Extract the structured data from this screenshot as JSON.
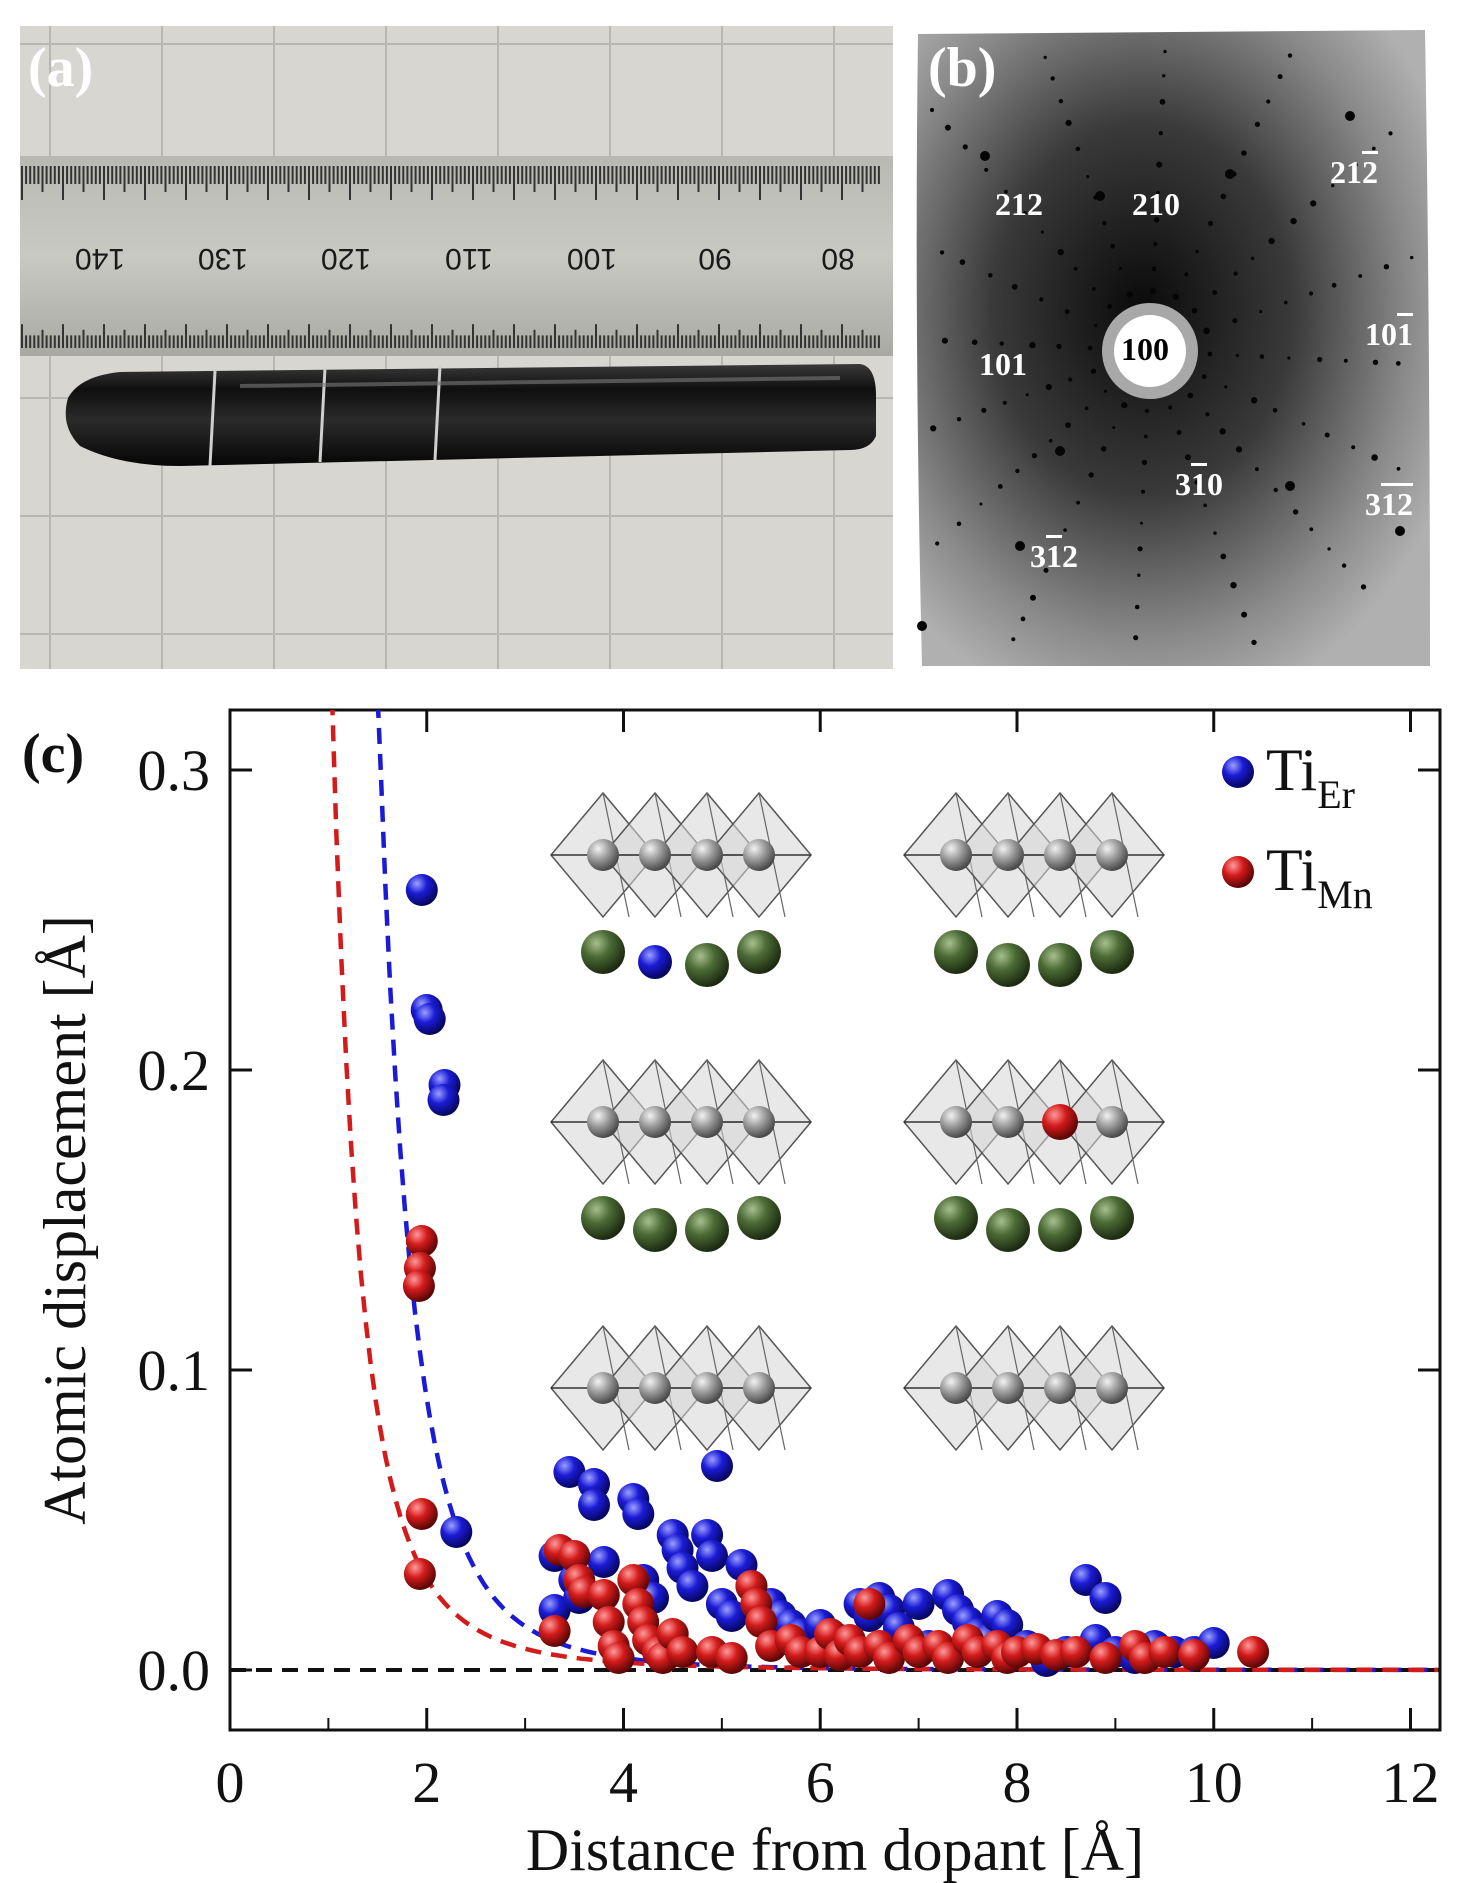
{
  "panels": {
    "a_label": "(a)",
    "b_label": "(b)",
    "c_label": "(c)"
  },
  "ruler": {
    "numbers": [
      "140",
      "130",
      "120",
      "110",
      "100",
      "90",
      "80"
    ]
  },
  "laue": {
    "spots": [
      {
        "main": "212",
        "bar": ""
      },
      {
        "main": "210",
        "bar": ""
      },
      {
        "main": "21",
        "bar": "2"
      },
      {
        "main": "100",
        "bar": ""
      },
      {
        "main": "101",
        "bar": ""
      },
      {
        "main": "10",
        "bar": "1"
      },
      {
        "main": "3",
        "bar": "1",
        "tail": "0"
      },
      {
        "main": "3",
        "bar": "12"
      },
      {
        "main": "3",
        "bar": "1",
        "tail": "2"
      }
    ]
  },
  "colors": {
    "ti_er": "#1b1bd6",
    "ti_mn": "#d41b1b",
    "er_atom": "#4b6b35",
    "mn_atom": "#8a8a8a"
  },
  "chart_data": {
    "type": "scatter",
    "title": "",
    "xlabel": "Distance from dopant [Å]",
    "ylabel": "Atomic displacement [Å]",
    "xlim": [
      0,
      12.3
    ],
    "ylim": [
      -0.02,
      0.32
    ],
    "xticks": [
      "0",
      "2",
      "4",
      "6",
      "8",
      "10",
      "12"
    ],
    "yticks": [
      "0.0",
      "0.1",
      "0.2",
      "0.3"
    ],
    "legend": [
      {
        "name": "Ti",
        "sub": "Er"
      },
      {
        "name": "Ti",
        "sub": "Mn"
      }
    ],
    "series": [
      {
        "name": "Ti_Er",
        "points": [
          [
            1.95,
            0.26
          ],
          [
            2.0,
            0.22
          ],
          [
            2.03,
            0.217
          ],
          [
            2.18,
            0.195
          ],
          [
            2.17,
            0.19
          ],
          [
            2.3,
            0.046
          ],
          [
            3.3,
            0.038
          ],
          [
            3.3,
            0.02
          ],
          [
            3.45,
            0.066
          ],
          [
            3.5,
            0.03
          ],
          [
            3.55,
            0.024
          ],
          [
            3.7,
            0.062
          ],
          [
            3.7,
            0.055
          ],
          [
            3.8,
            0.036
          ],
          [
            4.1,
            0.057
          ],
          [
            4.15,
            0.052
          ],
          [
            4.2,
            0.03
          ],
          [
            4.3,
            0.024
          ],
          [
            4.5,
            0.045
          ],
          [
            4.55,
            0.04
          ],
          [
            4.6,
            0.034
          ],
          [
            4.7,
            0.028
          ],
          [
            4.85,
            0.045
          ],
          [
            4.9,
            0.038
          ],
          [
            4.95,
            0.068
          ],
          [
            5.0,
            0.022
          ],
          [
            5.1,
            0.018
          ],
          [
            5.2,
            0.035
          ],
          [
            5.3,
            0.028
          ],
          [
            5.5,
            0.022
          ],
          [
            5.6,
            0.018
          ],
          [
            5.7,
            0.015
          ],
          [
            5.8,
            0.012
          ],
          [
            6.0,
            0.015
          ],
          [
            6.1,
            0.012
          ],
          [
            6.2,
            0.01
          ],
          [
            6.4,
            0.022
          ],
          [
            6.5,
            0.018
          ],
          [
            6.6,
            0.024
          ],
          [
            6.7,
            0.02
          ],
          [
            6.8,
            0.014
          ],
          [
            7.0,
            0.022
          ],
          [
            7.1,
            0.008
          ],
          [
            7.3,
            0.025
          ],
          [
            7.4,
            0.02
          ],
          [
            7.5,
            0.016
          ],
          [
            7.6,
            0.012
          ],
          [
            7.7,
            0.01
          ],
          [
            7.8,
            0.018
          ],
          [
            7.9,
            0.015
          ],
          [
            8.1,
            0.008
          ],
          [
            8.3,
            0.003
          ],
          [
            8.5,
            0.006
          ],
          [
            8.7,
            0.03
          ],
          [
            8.8,
            0.01
          ],
          [
            8.9,
            0.024
          ],
          [
            9.0,
            0.006
          ],
          [
            9.2,
            0.004
          ],
          [
            9.4,
            0.008
          ],
          [
            9.6,
            0.006
          ],
          [
            9.8,
            0.006
          ],
          [
            10.0,
            0.009
          ]
        ]
      },
      {
        "name": "Ti_Mn",
        "points": [
          [
            1.95,
            0.143
          ],
          [
            1.93,
            0.134
          ],
          [
            1.92,
            0.128
          ],
          [
            1.95,
            0.052
          ],
          [
            1.93,
            0.032
          ],
          [
            3.3,
            0.013
          ],
          [
            3.35,
            0.04
          ],
          [
            3.5,
            0.038
          ],
          [
            3.55,
            0.03
          ],
          [
            3.6,
            0.026
          ],
          [
            3.8,
            0.025
          ],
          [
            3.85,
            0.016
          ],
          [
            3.9,
            0.008
          ],
          [
            3.95,
            0.004
          ],
          [
            4.1,
            0.03
          ],
          [
            4.15,
            0.022
          ],
          [
            4.2,
            0.016
          ],
          [
            4.25,
            0.01
          ],
          [
            4.35,
            0.006
          ],
          [
            4.4,
            0.004
          ],
          [
            4.5,
            0.012
          ],
          [
            4.6,
            0.006
          ],
          [
            4.9,
            0.006
          ],
          [
            5.1,
            0.004
          ],
          [
            5.3,
            0.028
          ],
          [
            5.35,
            0.022
          ],
          [
            5.4,
            0.016
          ],
          [
            5.5,
            0.008
          ],
          [
            5.7,
            0.01
          ],
          [
            5.8,
            0.006
          ],
          [
            6.0,
            0.006
          ],
          [
            6.1,
            0.012
          ],
          [
            6.2,
            0.005
          ],
          [
            6.3,
            0.01
          ],
          [
            6.4,
            0.006
          ],
          [
            6.5,
            0.022
          ],
          [
            6.6,
            0.008
          ],
          [
            6.7,
            0.004
          ],
          [
            6.9,
            0.01
          ],
          [
            7.0,
            0.006
          ],
          [
            7.2,
            0.008
          ],
          [
            7.3,
            0.004
          ],
          [
            7.5,
            0.01
          ],
          [
            7.6,
            0.006
          ],
          [
            7.8,
            0.008
          ],
          [
            7.9,
            0.004
          ],
          [
            8.0,
            0.006
          ],
          [
            8.2,
            0.007
          ],
          [
            8.4,
            0.005
          ],
          [
            8.6,
            0.006
          ],
          [
            8.9,
            0.004
          ],
          [
            9.2,
            0.008
          ],
          [
            9.3,
            0.004
          ],
          [
            9.5,
            0.006
          ],
          [
            9.8,
            0.005
          ],
          [
            10.4,
            0.006
          ]
        ]
      }
    ],
    "fits": [
      {
        "name": "Ti_Er fit",
        "style": "dashed"
      },
      {
        "name": "Ti_Mn fit",
        "style": "dashed"
      }
    ],
    "zero_line": "dashed"
  }
}
